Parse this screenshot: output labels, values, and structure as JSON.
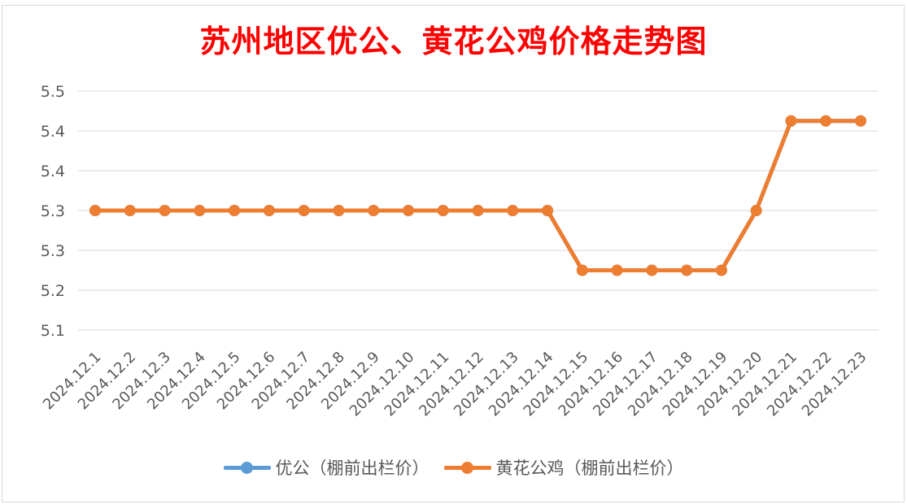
{
  "chart_data": {
    "type": "line",
    "title": "苏州地区优公、黄花公鸡价格走势图",
    "categories": [
      "2024.12.1",
      "2024.12.2",
      "2024.12.3",
      "2024.12.4",
      "2024.12.5",
      "2024.12.6",
      "2024.12.7",
      "2024.12.8",
      "2024.12.9",
      "2024.12.10",
      "2024.12.11",
      "2024.12.12",
      "2024.12.13",
      "2024.12.14",
      "2024.12.15",
      "2024.12.16",
      "2024.12.17",
      "2024.12.18",
      "2024.12.19",
      "2024.12.20",
      "2024.12.21",
      "2024.12.22",
      "2024.12.23"
    ],
    "y_ticks": [
      "5.1",
      "5.2",
      "5.3",
      "5.3",
      "5.4",
      "5.4",
      "5.5"
    ],
    "ylim": [
      5.1,
      5.5
    ],
    "grid": true,
    "legend_position": "bottom",
    "series": [
      {
        "name": "优公（棚前出栏价）",
        "color": "#5b9bd5",
        "values": [
          5.3,
          5.3,
          5.3,
          5.3,
          5.3,
          5.3,
          5.3,
          5.3,
          5.3,
          5.3,
          5.3,
          5.3,
          5.3,
          5.3,
          5.2,
          5.2,
          5.2,
          5.2,
          5.2,
          5.3,
          5.45,
          5.45,
          5.45
        ]
      },
      {
        "name": "黄花公鸡（棚前出栏价）",
        "color": "#ed7d31",
        "values": [
          5.3,
          5.3,
          5.3,
          5.3,
          5.3,
          5.3,
          5.3,
          5.3,
          5.3,
          5.3,
          5.3,
          5.3,
          5.3,
          5.3,
          5.2,
          5.2,
          5.2,
          5.2,
          5.2,
          5.3,
          5.45,
          5.45,
          5.45
        ]
      }
    ]
  }
}
